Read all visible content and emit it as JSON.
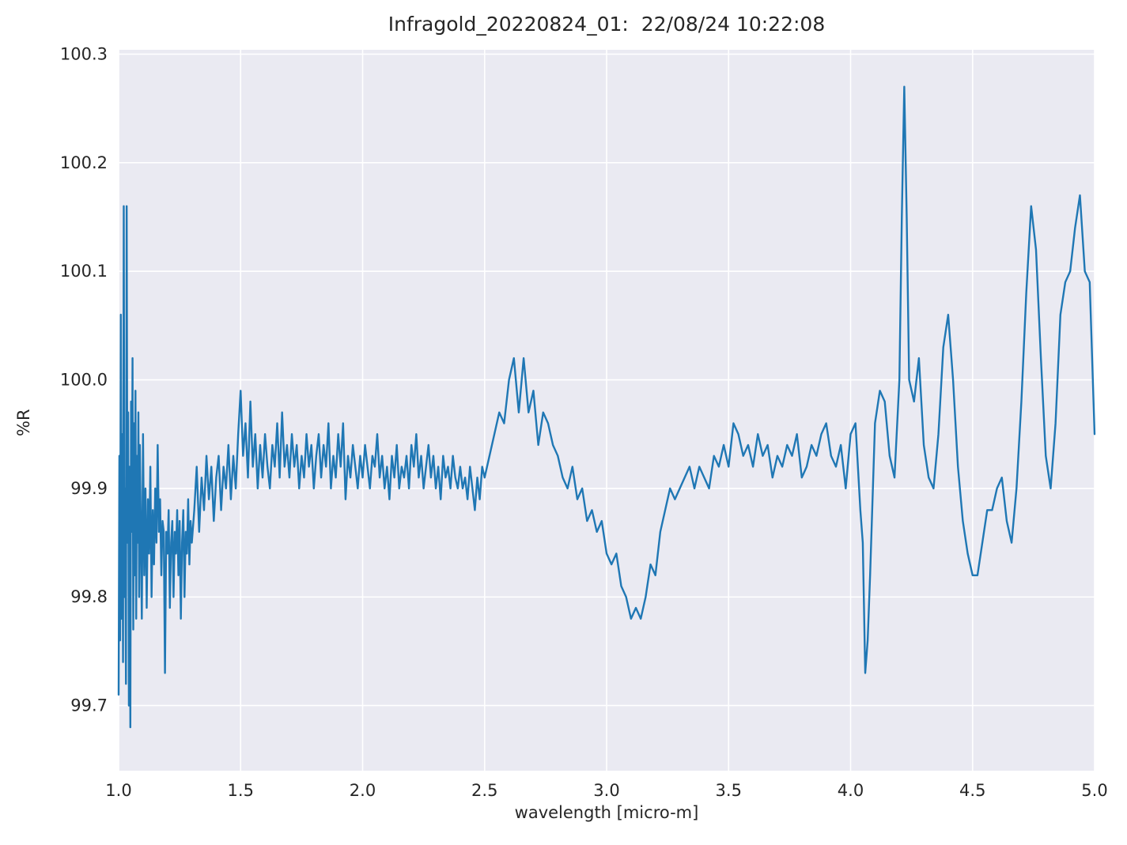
{
  "chart_data": {
    "type": "line",
    "title": "Infragold_20220824_01:  22/08/24 10:22:08",
    "xlabel": "wavelength [micro-m]",
    "ylabel": "%R",
    "xlim": [
      1.0,
      5.0
    ],
    "ylim": [
      99.64,
      100.304
    ],
    "xticks": [
      "1.0",
      "1.5",
      "2.0",
      "2.5",
      "3.0",
      "3.5",
      "4.0",
      "4.5",
      "5.0"
    ],
    "yticks": [
      "99.7",
      "99.8",
      "99.9",
      "100.0",
      "100.1",
      "100.2",
      "100.3"
    ],
    "grid": true,
    "legend_position": "none",
    "colors": {
      "line": "#1f77b4",
      "plot_bg": "#eaeaf2",
      "grid": "#ffffff",
      "text": "#262626"
    },
    "points": [
      [
        1.0,
        99.71
      ],
      [
        1.003,
        99.93
      ],
      [
        1.006,
        99.76
      ],
      [
        1.009,
        100.06
      ],
      [
        1.012,
        99.78
      ],
      [
        1.015,
        99.95
      ],
      [
        1.018,
        99.74
      ],
      [
        1.021,
        100.16
      ],
      [
        1.024,
        99.8
      ],
      [
        1.027,
        99.9
      ],
      [
        1.03,
        99.72
      ],
      [
        1.033,
        100.16
      ],
      [
        1.036,
        99.85
      ],
      [
        1.039,
        99.97
      ],
      [
        1.042,
        99.7
      ],
      [
        1.045,
        99.92
      ],
      [
        1.048,
        99.68
      ],
      [
        1.051,
        99.98
      ],
      [
        1.054,
        99.86
      ],
      [
        1.057,
        100.02
      ],
      [
        1.06,
        99.77
      ],
      [
        1.063,
        99.96
      ],
      [
        1.066,
        99.82
      ],
      [
        1.069,
        99.99
      ],
      [
        1.072,
        99.78
      ],
      [
        1.075,
        99.93
      ],
      [
        1.078,
        99.85
      ],
      [
        1.081,
        99.97
      ],
      [
        1.084,
        99.8
      ],
      [
        1.087,
        99.94
      ],
      [
        1.09,
        99.88
      ],
      [
        1.095,
        99.78
      ],
      [
        1.1,
        99.95
      ],
      [
        1.105,
        99.82
      ],
      [
        1.11,
        99.9
      ],
      [
        1.115,
        99.79
      ],
      [
        1.12,
        99.89
      ],
      [
        1.125,
        99.84
      ],
      [
        1.13,
        99.92
      ],
      [
        1.135,
        99.8
      ],
      [
        1.14,
        99.88
      ],
      [
        1.145,
        99.83
      ],
      [
        1.15,
        99.9
      ],
      [
        1.155,
        99.85
      ],
      [
        1.16,
        99.94
      ],
      [
        1.165,
        99.86
      ],
      [
        1.17,
        99.89
      ],
      [
        1.175,
        99.82
      ],
      [
        1.18,
        99.87
      ],
      [
        1.185,
        99.86
      ],
      [
        1.19,
        99.73
      ],
      [
        1.195,
        99.86
      ],
      [
        1.2,
        99.84
      ],
      [
        1.205,
        99.88
      ],
      [
        1.21,
        99.79
      ],
      [
        1.215,
        99.85
      ],
      [
        1.22,
        99.87
      ],
      [
        1.225,
        99.8
      ],
      [
        1.23,
        99.86
      ],
      [
        1.235,
        99.84
      ],
      [
        1.24,
        99.88
      ],
      [
        1.245,
        99.82
      ],
      [
        1.25,
        99.87
      ],
      [
        1.255,
        99.78
      ],
      [
        1.26,
        99.85
      ],
      [
        1.265,
        99.88
      ],
      [
        1.27,
        99.8
      ],
      [
        1.275,
        99.86
      ],
      [
        1.28,
        99.84
      ],
      [
        1.285,
        99.89
      ],
      [
        1.29,
        99.83
      ],
      [
        1.295,
        99.87
      ],
      [
        1.3,
        99.85
      ],
      [
        1.31,
        99.88
      ],
      [
        1.32,
        99.92
      ],
      [
        1.33,
        99.86
      ],
      [
        1.34,
        99.91
      ],
      [
        1.35,
        99.88
      ],
      [
        1.36,
        99.93
      ],
      [
        1.37,
        99.89
      ],
      [
        1.38,
        99.92
      ],
      [
        1.39,
        99.87
      ],
      [
        1.4,
        99.91
      ],
      [
        1.41,
        99.93
      ],
      [
        1.42,
        99.88
      ],
      [
        1.43,
        99.92
      ],
      [
        1.44,
        99.9
      ],
      [
        1.45,
        99.94
      ],
      [
        1.46,
        99.89
      ],
      [
        1.47,
        99.93
      ],
      [
        1.48,
        99.9
      ],
      [
        1.49,
        99.95
      ],
      [
        1.5,
        99.99
      ],
      [
        1.51,
        99.93
      ],
      [
        1.52,
        99.96
      ],
      [
        1.53,
        99.91
      ],
      [
        1.54,
        99.98
      ],
      [
        1.55,
        99.92
      ],
      [
        1.56,
        99.95
      ],
      [
        1.57,
        99.9
      ],
      [
        1.58,
        99.94
      ],
      [
        1.59,
        99.91
      ],
      [
        1.6,
        99.95
      ],
      [
        1.61,
        99.92
      ],
      [
        1.62,
        99.9
      ],
      [
        1.63,
        99.94
      ],
      [
        1.64,
        99.92
      ],
      [
        1.65,
        99.96
      ],
      [
        1.66,
        99.91
      ],
      [
        1.67,
        99.97
      ],
      [
        1.68,
        99.92
      ],
      [
        1.69,
        99.94
      ],
      [
        1.7,
        99.91
      ],
      [
        1.71,
        99.95
      ],
      [
        1.72,
        99.92
      ],
      [
        1.73,
        99.94
      ],
      [
        1.74,
        99.9
      ],
      [
        1.75,
        99.93
      ],
      [
        1.76,
        99.91
      ],
      [
        1.77,
        99.95
      ],
      [
        1.78,
        99.92
      ],
      [
        1.79,
        99.94
      ],
      [
        1.8,
        99.9
      ],
      [
        1.81,
        99.93
      ],
      [
        1.82,
        99.95
      ],
      [
        1.83,
        99.91
      ],
      [
        1.84,
        99.94
      ],
      [
        1.85,
        99.92
      ],
      [
        1.86,
        99.96
      ],
      [
        1.87,
        99.9
      ],
      [
        1.88,
        99.93
      ],
      [
        1.89,
        99.91
      ],
      [
        1.9,
        99.95
      ],
      [
        1.91,
        99.92
      ],
      [
        1.92,
        99.96
      ],
      [
        1.93,
        99.89
      ],
      [
        1.94,
        99.93
      ],
      [
        1.95,
        99.91
      ],
      [
        1.96,
        99.94
      ],
      [
        1.97,
        99.92
      ],
      [
        1.98,
        99.9
      ],
      [
        1.99,
        99.93
      ],
      [
        2.0,
        99.91
      ],
      [
        2.01,
        99.94
      ],
      [
        2.02,
        99.92
      ],
      [
        2.03,
        99.9
      ],
      [
        2.04,
        99.93
      ],
      [
        2.05,
        99.92
      ],
      [
        2.06,
        99.95
      ],
      [
        2.07,
        99.91
      ],
      [
        2.08,
        99.93
      ],
      [
        2.09,
        99.9
      ],
      [
        2.1,
        99.92
      ],
      [
        2.11,
        99.89
      ],
      [
        2.12,
        99.93
      ],
      [
        2.13,
        99.91
      ],
      [
        2.14,
        99.94
      ],
      [
        2.15,
        99.9
      ],
      [
        2.16,
        99.92
      ],
      [
        2.17,
        99.91
      ],
      [
        2.18,
        99.93
      ],
      [
        2.19,
        99.9
      ],
      [
        2.2,
        99.94
      ],
      [
        2.21,
        99.92
      ],
      [
        2.22,
        99.95
      ],
      [
        2.23,
        99.91
      ],
      [
        2.24,
        99.93
      ],
      [
        2.25,
        99.9
      ],
      [
        2.26,
        99.92
      ],
      [
        2.27,
        99.94
      ],
      [
        2.28,
        99.91
      ],
      [
        2.29,
        99.93
      ],
      [
        2.3,
        99.9
      ],
      [
        2.31,
        99.92
      ],
      [
        2.32,
        99.89
      ],
      [
        2.33,
        99.93
      ],
      [
        2.34,
        99.91
      ],
      [
        2.35,
        99.92
      ],
      [
        2.36,
        99.9
      ],
      [
        2.37,
        99.93
      ],
      [
        2.38,
        99.91
      ],
      [
        2.39,
        99.9
      ],
      [
        2.4,
        99.92
      ],
      [
        2.41,
        99.9
      ],
      [
        2.42,
        99.91
      ],
      [
        2.43,
        99.89
      ],
      [
        2.44,
        99.92
      ],
      [
        2.45,
        99.9
      ],
      [
        2.46,
        99.88
      ],
      [
        2.47,
        99.91
      ],
      [
        2.48,
        99.89
      ],
      [
        2.49,
        99.92
      ],
      [
        2.5,
        99.91
      ],
      [
        2.52,
        99.93
      ],
      [
        2.54,
        99.95
      ],
      [
        2.56,
        99.97
      ],
      [
        2.58,
        99.96
      ],
      [
        2.6,
        100.0
      ],
      [
        2.62,
        100.02
      ],
      [
        2.64,
        99.97
      ],
      [
        2.66,
        100.02
      ],
      [
        2.68,
        99.97
      ],
      [
        2.7,
        99.99
      ],
      [
        2.72,
        99.94
      ],
      [
        2.74,
        99.97
      ],
      [
        2.76,
        99.96
      ],
      [
        2.78,
        99.94
      ],
      [
        2.8,
        99.93
      ],
      [
        2.82,
        99.91
      ],
      [
        2.84,
        99.9
      ],
      [
        2.86,
        99.92
      ],
      [
        2.88,
        99.89
      ],
      [
        2.9,
        99.9
      ],
      [
        2.92,
        99.87
      ],
      [
        2.94,
        99.88
      ],
      [
        2.96,
        99.86
      ],
      [
        2.98,
        99.87
      ],
      [
        3.0,
        99.84
      ],
      [
        3.02,
        99.83
      ],
      [
        3.04,
        99.84
      ],
      [
        3.06,
        99.81
      ],
      [
        3.08,
        99.8
      ],
      [
        3.1,
        99.78
      ],
      [
        3.12,
        99.79
      ],
      [
        3.14,
        99.78
      ],
      [
        3.16,
        99.8
      ],
      [
        3.18,
        99.83
      ],
      [
        3.2,
        99.82
      ],
      [
        3.22,
        99.86
      ],
      [
        3.24,
        99.88
      ],
      [
        3.26,
        99.9
      ],
      [
        3.28,
        99.89
      ],
      [
        3.3,
        99.9
      ],
      [
        3.32,
        99.91
      ],
      [
        3.34,
        99.92
      ],
      [
        3.36,
        99.9
      ],
      [
        3.38,
        99.92
      ],
      [
        3.4,
        99.91
      ],
      [
        3.42,
        99.9
      ],
      [
        3.44,
        99.93
      ],
      [
        3.46,
        99.92
      ],
      [
        3.48,
        99.94
      ],
      [
        3.5,
        99.92
      ],
      [
        3.52,
        99.96
      ],
      [
        3.54,
        99.95
      ],
      [
        3.56,
        99.93
      ],
      [
        3.58,
        99.94
      ],
      [
        3.6,
        99.92
      ],
      [
        3.62,
        99.95
      ],
      [
        3.64,
        99.93
      ],
      [
        3.66,
        99.94
      ],
      [
        3.68,
        99.91
      ],
      [
        3.7,
        99.93
      ],
      [
        3.72,
        99.92
      ],
      [
        3.74,
        99.94
      ],
      [
        3.76,
        99.93
      ],
      [
        3.78,
        99.95
      ],
      [
        3.8,
        99.91
      ],
      [
        3.82,
        99.92
      ],
      [
        3.84,
        99.94
      ],
      [
        3.86,
        99.93
      ],
      [
        3.88,
        99.95
      ],
      [
        3.9,
        99.96
      ],
      [
        3.92,
        99.93
      ],
      [
        3.94,
        99.92
      ],
      [
        3.96,
        99.94
      ],
      [
        3.98,
        99.9
      ],
      [
        4.0,
        99.95
      ],
      [
        4.02,
        99.96
      ],
      [
        4.04,
        99.88
      ],
      [
        4.05,
        99.85
      ],
      [
        4.06,
        99.73
      ],
      [
        4.07,
        99.76
      ],
      [
        4.08,
        99.82
      ],
      [
        4.1,
        99.96
      ],
      [
        4.12,
        99.99
      ],
      [
        4.14,
        99.98
      ],
      [
        4.16,
        99.93
      ],
      [
        4.18,
        99.91
      ],
      [
        4.2,
        100.0
      ],
      [
        4.21,
        100.15
      ],
      [
        4.22,
        100.27
      ],
      [
        4.23,
        100.15
      ],
      [
        4.24,
        100.0
      ],
      [
        4.26,
        99.98
      ],
      [
        4.28,
        100.02
      ],
      [
        4.3,
        99.94
      ],
      [
        4.32,
        99.91
      ],
      [
        4.34,
        99.9
      ],
      [
        4.36,
        99.95
      ],
      [
        4.38,
        100.03
      ],
      [
        4.4,
        100.06
      ],
      [
        4.42,
        100.0
      ],
      [
        4.44,
        99.92
      ],
      [
        4.46,
        99.87
      ],
      [
        4.48,
        99.84
      ],
      [
        4.5,
        99.82
      ],
      [
        4.52,
        99.82
      ],
      [
        4.54,
        99.85
      ],
      [
        4.56,
        99.88
      ],
      [
        4.58,
        99.88
      ],
      [
        4.6,
        99.9
      ],
      [
        4.62,
        99.91
      ],
      [
        4.64,
        99.87
      ],
      [
        4.66,
        99.85
      ],
      [
        4.68,
        99.9
      ],
      [
        4.7,
        99.98
      ],
      [
        4.72,
        100.08
      ],
      [
        4.74,
        100.16
      ],
      [
        4.76,
        100.12
      ],
      [
        4.78,
        100.02
      ],
      [
        4.8,
        99.93
      ],
      [
        4.82,
        99.9
      ],
      [
        4.84,
        99.96
      ],
      [
        4.86,
        100.06
      ],
      [
        4.88,
        100.09
      ],
      [
        4.9,
        100.1
      ],
      [
        4.92,
        100.14
      ],
      [
        4.94,
        100.17
      ],
      [
        4.96,
        100.1
      ],
      [
        4.98,
        100.09
      ],
      [
        5.0,
        99.95
      ]
    ]
  }
}
